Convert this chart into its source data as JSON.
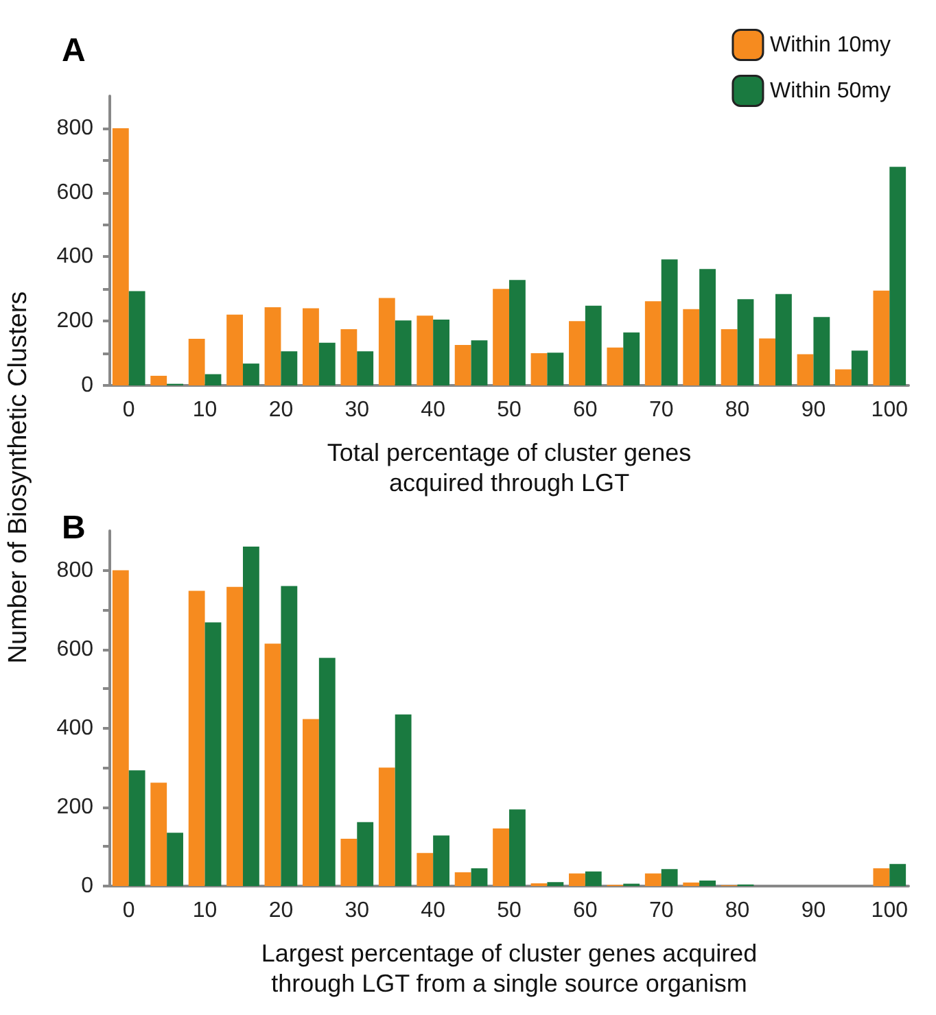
{
  "chart_data": [
    {
      "type": "bar",
      "title": "A",
      "xlabel": "Total percentage of cluster genes\nacquired through LGT",
      "ylabel": "Number of Biosynthetic Clusters",
      "categories": [
        "0",
        null,
        "10",
        null,
        "20",
        null,
        "30",
        null,
        "40",
        null,
        "50",
        null,
        "60",
        null,
        "70",
        null,
        "80",
        null,
        "90",
        null,
        "100"
      ],
      "series": [
        {
          "name": "Within 10my",
          "color": "#f68b1f",
          "values": [
            800,
            30,
            145,
            220,
            243,
            240,
            175,
            272,
            217,
            126,
            300,
            100,
            200,
            118,
            262,
            237,
            175,
            146,
            97,
            50,
            295
          ]
        },
        {
          "name": "Within 50my",
          "color": "#1a7a40",
          "values": [
            293,
            5,
            35,
            68,
            106,
            133,
            106,
            202,
            205,
            140,
            328,
            102,
            248,
            165,
            392,
            362,
            268,
            284,
            213,
            108,
            680
          ]
        }
      ],
      "ylim": [
        0,
        900
      ],
      "yticks": [
        0,
        {
          "value": 100,
          "label": null
        },
        200,
        {
          "value": 300,
          "label": null
        },
        400,
        {
          "value": 500,
          "label": null
        },
        600,
        {
          "value": 700,
          "label": null
        },
        800
      ],
      "grid": false,
      "legend": "top right"
    },
    {
      "type": "bar",
      "title": "B",
      "xlabel": "Largest percentage of cluster genes acquired\nthrough LGT from a single source organism",
      "categories": [
        "0",
        null,
        "10",
        null,
        "20",
        null,
        "30",
        null,
        "40",
        null,
        "50",
        null,
        "60",
        null,
        "70",
        null,
        "80",
        null,
        "90",
        null,
        "100"
      ],
      "series": [
        {
          "color": "#f68b1f",
          "values": [
            800,
            262,
            748,
            758,
            614,
            423,
            120,
            300,
            84,
            35,
            146,
            7,
            32,
            3,
            32,
            9,
            2,
            0,
            0,
            0,
            45
          ]
        },
        {
          "color": "#1a7a40",
          "values": [
            293,
            135,
            668,
            860,
            760,
            578,
            162,
            435,
            128,
            45,
            194,
            10,
            37,
            6,
            43,
            14,
            4,
            0,
            0,
            0,
            56
          ]
        }
      ],
      "ylim": [
        0,
        900
      ],
      "yticks": [
        0,
        {
          "value": 100,
          "label": null
        },
        200,
        {
          "value": 300,
          "label": null
        },
        400,
        {
          "value": 500,
          "label": null
        },
        600,
        {
          "value": 700,
          "label": null
        },
        800
      ],
      "grid": false,
      "legend": false
    }
  ]
}
